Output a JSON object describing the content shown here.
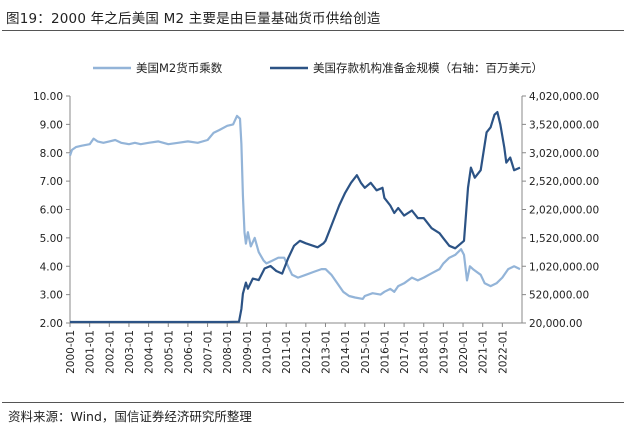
{
  "figure": {
    "title": "图19：2000 年之后美国 M2 主要是由巨量基础货币供给创造",
    "source": "资料来源：Wind，国信证券经济研究所整理"
  },
  "chart_data": {
    "type": "line",
    "x_ticks": [
      "2000-01",
      "2001-01",
      "2002-01",
      "2003-01",
      "2004-01",
      "2005-01",
      "2006-01",
      "2007-01",
      "2008-01",
      "2009-01",
      "2010-01",
      "2011-01",
      "2012-01",
      "2013-01",
      "2014-01",
      "2015-01",
      "2016-01",
      "2017-01",
      "2018-01",
      "2019-01",
      "2020-01",
      "2021-01",
      "2022-01"
    ],
    "y_left": {
      "min": 2,
      "max": 10,
      "ticks": [
        "2.00",
        "3.00",
        "4.00",
        "5.00",
        "6.00",
        "7.00",
        "8.00",
        "9.00",
        "10.00"
      ]
    },
    "y_right": {
      "label": "右轴：百万美元",
      "min": 20000,
      "max": 4520000,
      "ticks": [
        "20,000.00",
        "520,000.00",
        "1,020,000.00",
        "1,520,000.00",
        "2,020,000.00",
        "2,520,000.00",
        "3,020,000.00",
        "3,520,000.00",
        "4,020,000.00"
      ]
    },
    "legend_position": "top",
    "grid": false,
    "series": [
      {
        "name": "美国M2货币乘数",
        "axis": "left",
        "color": "#93b4d8",
        "points": [
          [
            2000.0,
            7.9
          ],
          [
            2000.1,
            8.1
          ],
          [
            2000.3,
            8.2
          ],
          [
            2000.6,
            8.25
          ],
          [
            2001.0,
            8.3
          ],
          [
            2001.2,
            8.5
          ],
          [
            2001.4,
            8.4
          ],
          [
            2001.7,
            8.35
          ],
          [
            2002.0,
            8.4
          ],
          [
            2002.3,
            8.45
          ],
          [
            2002.6,
            8.35
          ],
          [
            2003.0,
            8.3
          ],
          [
            2003.3,
            8.35
          ],
          [
            2003.6,
            8.3
          ],
          [
            2004.0,
            8.35
          ],
          [
            2004.5,
            8.4
          ],
          [
            2005.0,
            8.3
          ],
          [
            2005.5,
            8.35
          ],
          [
            2006.0,
            8.4
          ],
          [
            2006.5,
            8.35
          ],
          [
            2007.0,
            8.45
          ],
          [
            2007.3,
            8.7
          ],
          [
            2007.6,
            8.8
          ],
          [
            2008.0,
            8.95
          ],
          [
            2008.3,
            9.0
          ],
          [
            2008.5,
            9.3
          ],
          [
            2008.65,
            9.2
          ],
          [
            2008.72,
            8.3
          ],
          [
            2008.8,
            6.5
          ],
          [
            2008.88,
            5.2
          ],
          [
            2008.95,
            4.8
          ],
          [
            2009.05,
            5.2
          ],
          [
            2009.2,
            4.7
          ],
          [
            2009.4,
            5.0
          ],
          [
            2009.6,
            4.5
          ],
          [
            2009.85,
            4.2
          ],
          [
            2010.0,
            4.1
          ],
          [
            2010.3,
            4.2
          ],
          [
            2010.6,
            4.3
          ],
          [
            2010.9,
            4.3
          ],
          [
            2011.1,
            4.0
          ],
          [
            2011.3,
            3.7
          ],
          [
            2011.6,
            3.6
          ],
          [
            2012.0,
            3.7
          ],
          [
            2012.4,
            3.8
          ],
          [
            2012.8,
            3.9
          ],
          [
            2013.0,
            3.9
          ],
          [
            2013.3,
            3.7
          ],
          [
            2013.6,
            3.4
          ],
          [
            2013.9,
            3.1
          ],
          [
            2014.2,
            2.95
          ],
          [
            2014.5,
            2.9
          ],
          [
            2014.9,
            2.85
          ],
          [
            2015.0,
            2.95
          ],
          [
            2015.4,
            3.05
          ],
          [
            2015.8,
            3.0
          ],
          [
            2016.0,
            3.1
          ],
          [
            2016.3,
            3.2
          ],
          [
            2016.5,
            3.1
          ],
          [
            2016.7,
            3.3
          ],
          [
            2017.0,
            3.4
          ],
          [
            2017.4,
            3.6
          ],
          [
            2017.7,
            3.5
          ],
          [
            2018.0,
            3.6
          ],
          [
            2018.4,
            3.75
          ],
          [
            2018.8,
            3.9
          ],
          [
            2019.0,
            4.1
          ],
          [
            2019.3,
            4.3
          ],
          [
            2019.6,
            4.4
          ],
          [
            2019.9,
            4.6
          ],
          [
            2020.05,
            4.4
          ],
          [
            2020.2,
            3.5
          ],
          [
            2020.35,
            4.0
          ],
          [
            2020.5,
            3.9
          ],
          [
            2020.9,
            3.7
          ],
          [
            2021.1,
            3.4
          ],
          [
            2021.4,
            3.3
          ],
          [
            2021.7,
            3.4
          ],
          [
            2022.0,
            3.6
          ],
          [
            2022.3,
            3.9
          ],
          [
            2022.6,
            4.0
          ],
          [
            2022.9,
            3.9
          ]
        ]
      },
      {
        "name": "美国存款机构准备金规模（右轴：百万美元）",
        "axis": "right",
        "color": "#2c5385",
        "points": [
          [
            2000.0,
            40000
          ],
          [
            2001.0,
            40000
          ],
          [
            2002.0,
            40000
          ],
          [
            2003.0,
            40000
          ],
          [
            2004.0,
            40000
          ],
          [
            2005.0,
            40000
          ],
          [
            2006.0,
            40000
          ],
          [
            2007.0,
            40000
          ],
          [
            2008.0,
            40000
          ],
          [
            2008.6,
            45000
          ],
          [
            2008.72,
            300000
          ],
          [
            2008.8,
            600000
          ],
          [
            2008.95,
            820000
          ],
          [
            2009.05,
            700000
          ],
          [
            2009.3,
            900000
          ],
          [
            2009.6,
            870000
          ],
          [
            2009.9,
            1100000
          ],
          [
            2010.2,
            1150000
          ],
          [
            2010.5,
            1050000
          ],
          [
            2010.8,
            1000000
          ],
          [
            2011.1,
            1300000
          ],
          [
            2011.4,
            1550000
          ],
          [
            2011.7,
            1650000
          ],
          [
            2012.0,
            1600000
          ],
          [
            2012.3,
            1560000
          ],
          [
            2012.6,
            1520000
          ],
          [
            2012.9,
            1600000
          ],
          [
            2013.0,
            1650000
          ],
          [
            2013.3,
            1950000
          ],
          [
            2013.7,
            2350000
          ],
          [
            2014.0,
            2600000
          ],
          [
            2014.3,
            2800000
          ],
          [
            2014.6,
            2950000
          ],
          [
            2014.8,
            2800000
          ],
          [
            2015.0,
            2700000
          ],
          [
            2015.3,
            2800000
          ],
          [
            2015.6,
            2650000
          ],
          [
            2015.9,
            2700000
          ],
          [
            2016.0,
            2500000
          ],
          [
            2016.3,
            2350000
          ],
          [
            2016.5,
            2200000
          ],
          [
            2016.7,
            2300000
          ],
          [
            2017.0,
            2150000
          ],
          [
            2017.4,
            2250000
          ],
          [
            2017.7,
            2100000
          ],
          [
            2018.0,
            2100000
          ],
          [
            2018.4,
            1900000
          ],
          [
            2018.8,
            1800000
          ],
          [
            2019.0,
            1700000
          ],
          [
            2019.3,
            1550000
          ],
          [
            2019.6,
            1500000
          ],
          [
            2019.9,
            1600000
          ],
          [
            2020.05,
            1650000
          ],
          [
            2020.25,
            2700000
          ],
          [
            2020.4,
            3100000
          ],
          [
            2020.6,
            2900000
          ],
          [
            2020.9,
            3050000
          ],
          [
            2021.2,
            3800000
          ],
          [
            2021.4,
            3900000
          ],
          [
            2021.6,
            4150000
          ],
          [
            2021.75,
            4200000
          ],
          [
            2021.9,
            3950000
          ],
          [
            2022.1,
            3500000
          ],
          [
            2022.2,
            3200000
          ],
          [
            2022.4,
            3300000
          ],
          [
            2022.6,
            3050000
          ],
          [
            2022.9,
            3100000
          ]
        ]
      }
    ]
  }
}
